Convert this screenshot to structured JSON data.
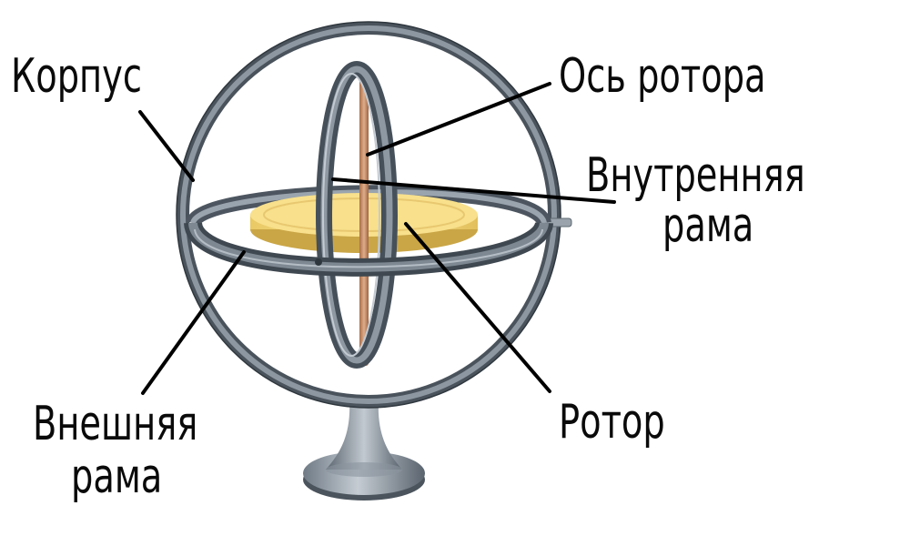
{
  "labels": {
    "housing": "Корпус",
    "rotor_axis": "Ось  ротора",
    "inner_frame_line1": "Внутренняя",
    "inner_frame_line2": "рама",
    "rotor": "Ротор",
    "outer_frame_line1": "Внешняя",
    "outer_frame_line2": "рама"
  },
  "colors": {
    "frame": "#5f6a75",
    "frame_dark": "#3f4850",
    "frame_light": "#b9c2cb",
    "rotor": "#f3d77a",
    "rotor_edge": "#c8a84a",
    "axis": "#c9906a",
    "leader": "#000000"
  }
}
